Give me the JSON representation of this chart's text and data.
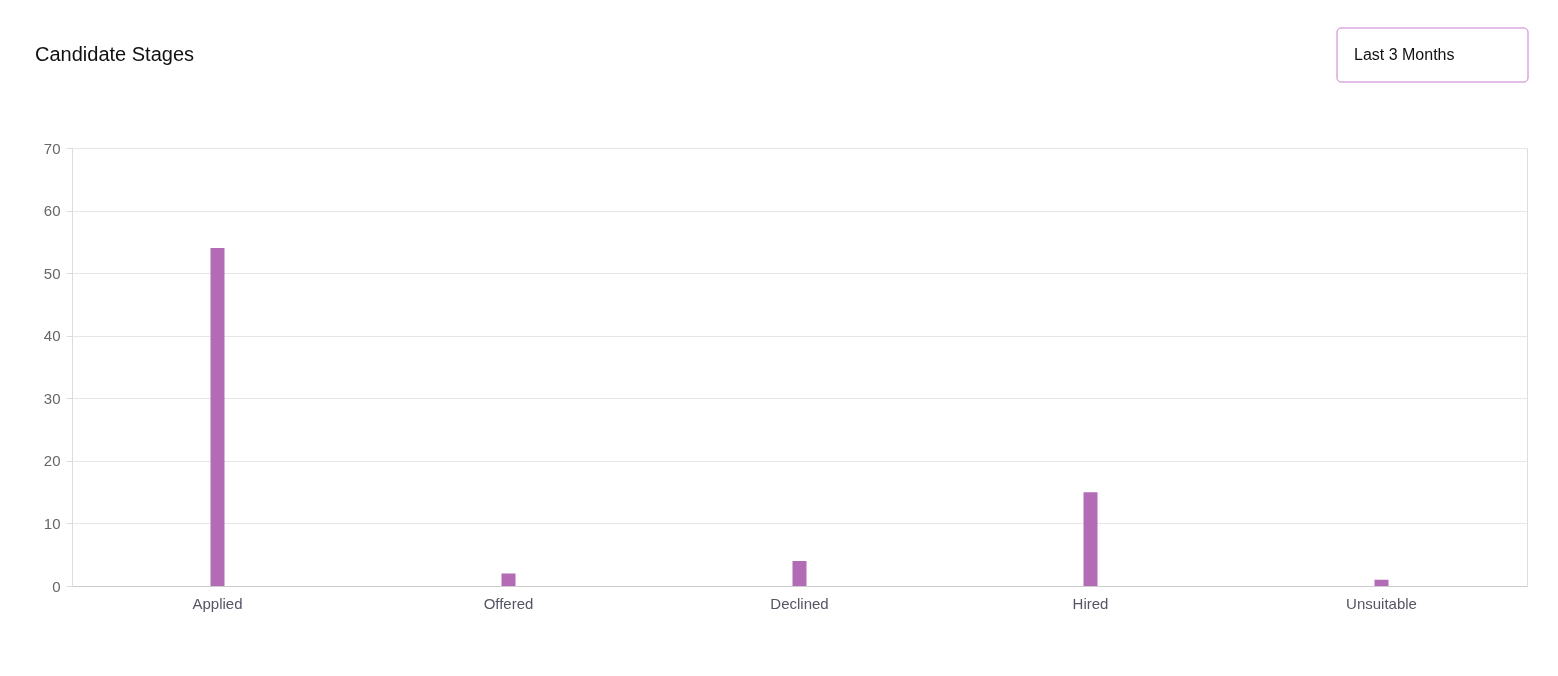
{
  "chart_data": {
    "type": "bar",
    "title": "Candidate Stages",
    "categories": [
      "Applied",
      "Offered",
      "Declined",
      "Hired",
      "Unsuitable"
    ],
    "values": [
      54,
      2,
      4,
      15,
      1
    ],
    "color": "#b36bb5",
    "ylim": [
      0,
      70
    ],
    "yticks": [
      0,
      10,
      20,
      30,
      40,
      50,
      60,
      70
    ],
    "grid": "y",
    "annotations": [
      "Last 3 Months"
    ]
  }
}
